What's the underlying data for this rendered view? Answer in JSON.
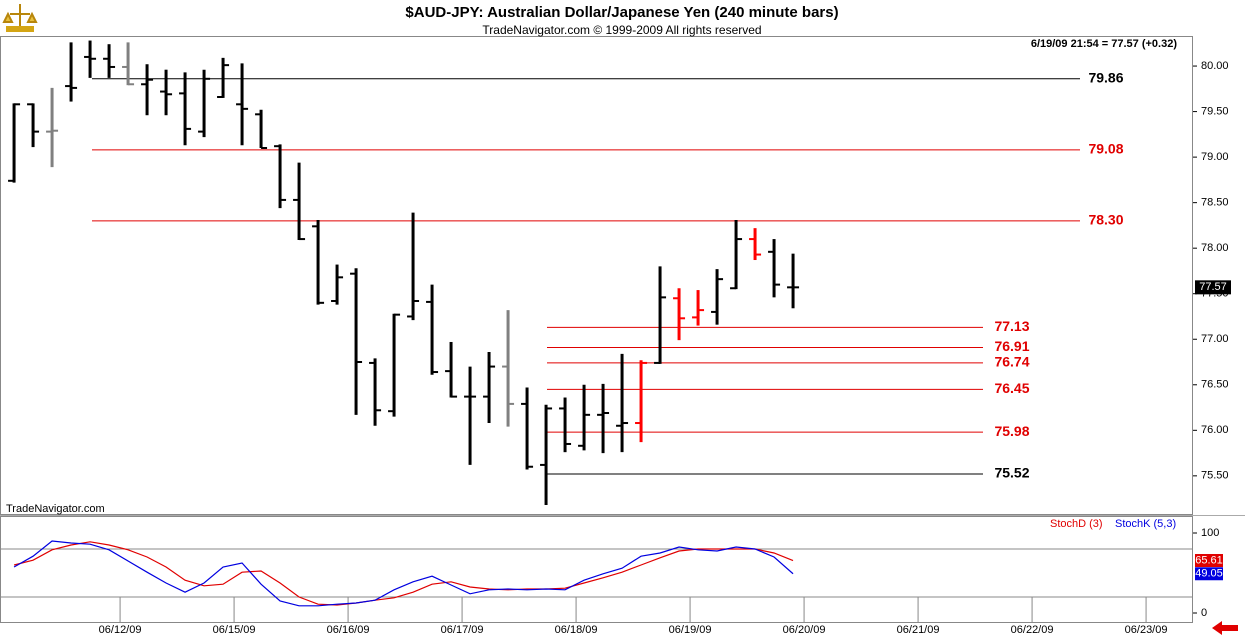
{
  "chart_data": [
    {
      "type": "ohlc",
      "title": "$AUD-JPY:  Australian Dollar/Japanese Yen  (240 minute bars)",
      "subtitle": "TradeNavigator.com © 1999-2009 All rights reserved",
      "annotation": "6/19/09 21:54 = 77.57 (+0.32)",
      "watermark": "TradeNavigator.com",
      "x": [
        0,
        1,
        2,
        3,
        4,
        5,
        6,
        7,
        8,
        9,
        10,
        11,
        12,
        13,
        14,
        15,
        16,
        17,
        18,
        19,
        20,
        21,
        22,
        23,
        24,
        25,
        26,
        27,
        28,
        29,
        30,
        31,
        32,
        33,
        34,
        35,
        36,
        37,
        38,
        39,
        40,
        41
      ],
      "open": [
        78.74,
        79.58,
        79.28,
        79.78,
        80.1,
        80.08,
        79.99,
        79.8,
        79.72,
        79.7,
        79.28,
        79.66,
        79.58,
        79.47,
        79.12,
        78.53,
        78.24,
        77.42,
        77.72,
        76.74,
        76.21,
        77.25,
        77.41,
        76.65,
        76.37,
        76.37,
        76.7,
        76.29,
        75.62,
        76.24,
        75.83,
        76.17,
        76.05,
        76.08,
        76.74,
        77.45,
        77.24,
        77.3,
        77.56,
        78.1,
        77.96,
        77.57
      ],
      "high": [
        79.59,
        79.59,
        79.76,
        80.26,
        80.28,
        80.24,
        80.26,
        80.02,
        79.96,
        79.93,
        79.96,
        80.09,
        80.03,
        79.52,
        79.14,
        78.94,
        78.31,
        77.82,
        77.78,
        76.79,
        77.28,
        78.39,
        77.6,
        76.97,
        76.7,
        76.86,
        77.32,
        76.47,
        76.28,
        76.36,
        76.5,
        76.51,
        76.84,
        76.77,
        77.8,
        77.56,
        77.54,
        77.77,
        78.31,
        78.22,
        78.1,
        77.94
      ],
      "low": [
        78.72,
        79.11,
        78.89,
        79.61,
        79.87,
        79.87,
        79.79,
        79.46,
        79.46,
        79.13,
        79.22,
        79.65,
        79.13,
        79.1,
        78.44,
        78.09,
        77.38,
        77.38,
        76.17,
        76.05,
        76.15,
        77.21,
        76.61,
        76.36,
        75.62,
        76.08,
        76.04,
        75.57,
        75.18,
        75.76,
        75.78,
        75.75,
        75.76,
        75.87,
        76.73,
        76.99,
        77.15,
        77.16,
        77.55,
        77.87,
        77.46,
        77.34
      ],
      "close": [
        79.58,
        79.28,
        79.29,
        79.76,
        80.08,
        79.99,
        79.8,
        79.85,
        79.69,
        79.31,
        79.86,
        80.01,
        79.53,
        79.1,
        78.53,
        78.1,
        77.4,
        77.68,
        76.75,
        76.22,
        77.27,
        77.42,
        76.64,
        76.37,
        76.37,
        76.7,
        76.29,
        75.6,
        76.24,
        75.85,
        76.17,
        76.19,
        76.08,
        76.74,
        77.46,
        77.23,
        77.32,
        77.66,
        78.1,
        77.93,
        77.6,
        77.57
      ],
      "colors": [
        "#000",
        "#000",
        "#808080",
        "#000",
        "#000",
        "#000",
        "#808080",
        "#000",
        "#000",
        "#000",
        "#000",
        "#000",
        "#000",
        "#000",
        "#000",
        "#000",
        "#000",
        "#000",
        "#000",
        "#000",
        "#000",
        "#000",
        "#000",
        "#000",
        "#000",
        "#000",
        "#808080",
        "#000",
        "#000",
        "#000",
        "#000",
        "#000",
        "#000",
        "#ff0000",
        "#000",
        "#ff0000",
        "#ff0000",
        "#000",
        "#000",
        "#ff0000",
        "#000",
        "#000"
      ],
      "xlim": [
        -0.74,
        62.05
      ],
      "ylim": [
        75.07,
        80.33
      ],
      "yticks": [
        {
          "value": 75.5,
          "label": "75.50"
        },
        {
          "value": 76,
          "label": "76.00"
        },
        {
          "value": 76.5,
          "label": "76.50"
        },
        {
          "value": 77,
          "label": "77.00"
        },
        {
          "value": 77.5,
          "label": "77.50"
        },
        {
          "value": 78,
          "label": "78.00"
        },
        {
          "value": 78.5,
          "label": "78.50"
        },
        {
          "value": 79,
          "label": "79.00"
        },
        {
          "value": 79.5,
          "label": "79.50"
        },
        {
          "value": 80,
          "label": "80.00"
        }
      ],
      "last_value": 77.57,
      "levels": [
        {
          "value": 79.86,
          "color": "#000000"
        },
        {
          "value": 79.08,
          "color": "#e00000"
        },
        {
          "value": 78.3,
          "label": "78.30",
          "color": "#e00000"
        },
        {
          "value": 77.13,
          "color": "#e00000"
        },
        {
          "value": 76.91,
          "color": "#e00000"
        },
        {
          "value": 76.74,
          "color": "#e00000"
        },
        {
          "value": 76.45,
          "color": "#e00000"
        },
        {
          "value": 75.98,
          "color": "#e00000"
        },
        {
          "value": 75.52,
          "color": "#000000"
        }
      ]
    },
    {
      "type": "line",
      "x": [
        0,
        1,
        2,
        3,
        4,
        5,
        6,
        7,
        8,
        9,
        10,
        11,
        12,
        13,
        14,
        15,
        16,
        17,
        18,
        19,
        20,
        21,
        22,
        23,
        24,
        25,
        26,
        27,
        28,
        29,
        30,
        31,
        32,
        33,
        34,
        35,
        36,
        37,
        38,
        39,
        40,
        41
      ],
      "series": [
        {
          "name": "StochD (3)",
          "color": "#e00000",
          "values": [
            60,
            66,
            79,
            85,
            89,
            85,
            79,
            70,
            57.5,
            41,
            34,
            36,
            51,
            52.5,
            37.5,
            20,
            11,
            10,
            12.5,
            16,
            19,
            26,
            36,
            39,
            32.5,
            30,
            29,
            30,
            30,
            31,
            37.5,
            44,
            51,
            60,
            69,
            77.5,
            80,
            80,
            80,
            80,
            75,
            65.61
          ]
        },
        {
          "name": "StochK (5,3)",
          "color": "#0000e0",
          "values": [
            57.5,
            71,
            90,
            87.5,
            86,
            79,
            65,
            51,
            37.5,
            26,
            37.5,
            57.5,
            62.5,
            36,
            15,
            9,
            9,
            11,
            12.5,
            16,
            29,
            39,
            46,
            35,
            24,
            29,
            30,
            29,
            30,
            29,
            41,
            49,
            56,
            71,
            75,
            82.5,
            79,
            77.5,
            82.5,
            80,
            70,
            49.05
          ]
        }
      ],
      "xlim": [
        -0.74,
        62.05
      ],
      "ylim": [
        -11.25,
        120
      ],
      "yticks": [
        0,
        100
      ],
      "levels": [
        20,
        80
      ],
      "xticks": [
        {
          "value": 5.58,
          "label": "06/12/09"
        },
        {
          "value": 11.58,
          "label": "06/15/09"
        },
        {
          "value": 17.58,
          "label": "06/16/09"
        },
        {
          "value": 23.58,
          "label": "06/17/09"
        },
        {
          "value": 29.58,
          "label": "06/18/09"
        },
        {
          "value": 35.58,
          "label": "06/19/09"
        },
        {
          "value": 41.58,
          "label": "06/20/09"
        },
        {
          "value": 47.58,
          "label": "06/21/09"
        },
        {
          "value": 53.58,
          "label": "06/22/09"
        },
        {
          "value": 59.58,
          "label": "06/23/09"
        }
      ]
    }
  ]
}
